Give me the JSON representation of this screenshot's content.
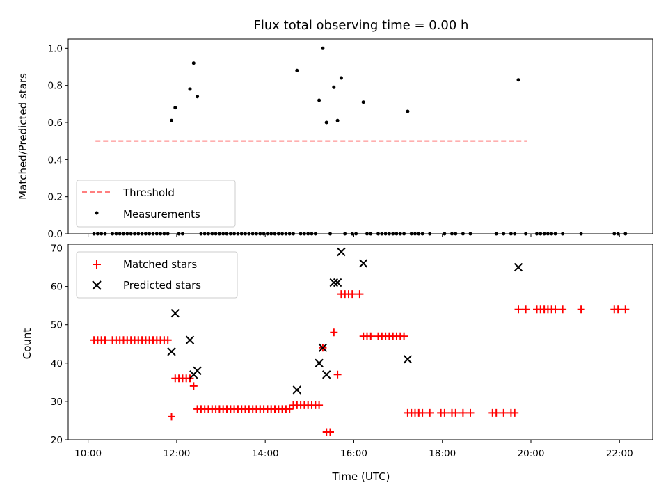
{
  "chart_data": [
    {
      "type": "scatter",
      "title": "Flux total observing time = 0.00 h",
      "xlabel": "",
      "ylabel": "Matched/Predicted stars",
      "xlim": [
        "09:33",
        "22:45"
      ],
      "ylim": [
        0,
        1.05
      ],
      "yticks": [
        "0.0",
        "0.2",
        "0.4",
        "0.6",
        "0.8",
        "1.0"
      ],
      "legend": {
        "position": "lower-left",
        "entries": [
          "Threshold",
          "Measurements"
        ]
      },
      "series": [
        {
          "name": "Threshold",
          "style": "dashed-line",
          "color": "#ff7f7f",
          "x": [
            "10:10",
            "19:55"
          ],
          "y": [
            0.5,
            0.5
          ]
        },
        {
          "name": "Measurements",
          "style": "dot",
          "color": "#000000",
          "points": [
            [
              "11:53",
              0.61
            ],
            [
              "11:58",
              0.68
            ],
            [
              "12:18",
              0.78
            ],
            [
              "12:23",
              0.92
            ],
            [
              "12:28",
              0.74
            ],
            [
              "14:43",
              0.88
            ],
            [
              "15:13",
              0.72
            ],
            [
              "15:18",
              1.0
            ],
            [
              "15:23",
              0.6
            ],
            [
              "15:33",
              0.79
            ],
            [
              "15:38",
              0.61
            ],
            [
              "15:43",
              0.84
            ],
            [
              "16:13",
              0.71
            ],
            [
              "17:13",
              0.66
            ],
            [
              "19:43",
              0.83
            ],
            [
              "10:08",
              0
            ],
            [
              "10:13",
              0
            ],
            [
              "10:18",
              0
            ],
            [
              "10:23",
              0
            ],
            [
              "10:33",
              0
            ],
            [
              "10:38",
              0
            ],
            [
              "10:43",
              0
            ],
            [
              "10:48",
              0
            ],
            [
              "10:53",
              0
            ],
            [
              "10:58",
              0
            ],
            [
              "11:03",
              0
            ],
            [
              "11:08",
              0
            ],
            [
              "11:13",
              0
            ],
            [
              "11:18",
              0
            ],
            [
              "11:23",
              0
            ],
            [
              "11:28",
              0
            ],
            [
              "11:33",
              0
            ],
            [
              "11:38",
              0
            ],
            [
              "11:43",
              0
            ],
            [
              "11:48",
              0
            ],
            [
              "12:03",
              0
            ],
            [
              "12:08",
              0
            ],
            [
              "12:33",
              0
            ],
            [
              "12:38",
              0
            ],
            [
              "12:43",
              0
            ],
            [
              "12:48",
              0
            ],
            [
              "12:53",
              0
            ],
            [
              "12:58",
              0
            ],
            [
              "13:03",
              0
            ],
            [
              "13:08",
              0
            ],
            [
              "13:13",
              0
            ],
            [
              "13:18",
              0
            ],
            [
              "13:23",
              0
            ],
            [
              "13:28",
              0
            ],
            [
              "13:33",
              0
            ],
            [
              "13:38",
              0
            ],
            [
              "13:43",
              0
            ],
            [
              "13:48",
              0
            ],
            [
              "13:53",
              0
            ],
            [
              "13:58",
              0
            ],
            [
              "14:03",
              0
            ],
            [
              "14:08",
              0
            ],
            [
              "14:13",
              0
            ],
            [
              "14:18",
              0
            ],
            [
              "14:23",
              0
            ],
            [
              "14:28",
              0
            ],
            [
              "14:33",
              0
            ],
            [
              "14:38",
              0
            ],
            [
              "14:48",
              0
            ],
            [
              "14:53",
              0
            ],
            [
              "14:58",
              0
            ],
            [
              "15:03",
              0
            ],
            [
              "15:08",
              0
            ],
            [
              "15:28",
              0
            ],
            [
              "15:48",
              0
            ],
            [
              "15:58",
              0
            ],
            [
              "16:03",
              0
            ],
            [
              "16:18",
              0
            ],
            [
              "16:23",
              0
            ],
            [
              "16:33",
              0
            ],
            [
              "16:38",
              0
            ],
            [
              "16:43",
              0
            ],
            [
              "16:48",
              0
            ],
            [
              "16:53",
              0
            ],
            [
              "16:58",
              0
            ],
            [
              "17:03",
              0
            ],
            [
              "17:08",
              0
            ],
            [
              "17:18",
              0
            ],
            [
              "17:23",
              0
            ],
            [
              "17:28",
              0
            ],
            [
              "17:33",
              0
            ],
            [
              "17:43",
              0
            ],
            [
              "18:03",
              0
            ],
            [
              "18:13",
              0
            ],
            [
              "18:18",
              0
            ],
            [
              "18:28",
              0
            ],
            [
              "18:38",
              0
            ],
            [
              "19:13",
              0
            ],
            [
              "19:23",
              0
            ],
            [
              "19:33",
              0
            ],
            [
              "19:38",
              0
            ],
            [
              "19:53",
              0
            ],
            [
              "20:08",
              0
            ],
            [
              "20:13",
              0
            ],
            [
              "20:18",
              0
            ],
            [
              "20:23",
              0
            ],
            [
              "20:28",
              0
            ],
            [
              "20:33",
              0
            ],
            [
              "20:43",
              0
            ],
            [
              "21:08",
              0
            ],
            [
              "21:53",
              0
            ],
            [
              "21:58",
              0
            ],
            [
              "22:08",
              0
            ]
          ]
        }
      ]
    },
    {
      "type": "scatter",
      "title": "",
      "xlabel": "Time (UTC)",
      "ylabel": "Count",
      "xlim": [
        "09:33",
        "22:45"
      ],
      "ylim": [
        20,
        71
      ],
      "xticks": [
        "10:00",
        "12:00",
        "14:00",
        "16:00",
        "18:00",
        "20:00",
        "22:00"
      ],
      "yticks": [
        "20",
        "30",
        "40",
        "50",
        "60",
        "70"
      ],
      "legend": {
        "position": "upper-left",
        "entries": [
          "Matched stars",
          "Predicted stars"
        ]
      },
      "series": [
        {
          "name": "Matched stars",
          "marker": "plus",
          "color": "#ff0000",
          "points": [
            [
              "10:08",
              46
            ],
            [
              "10:13",
              46
            ],
            [
              "10:18",
              46
            ],
            [
              "10:23",
              46
            ],
            [
              "10:33",
              46
            ],
            [
              "10:38",
              46
            ],
            [
              "10:43",
              46
            ],
            [
              "10:48",
              46
            ],
            [
              "10:53",
              46
            ],
            [
              "10:58",
              46
            ],
            [
              "11:03",
              46
            ],
            [
              "11:08",
              46
            ],
            [
              "11:13",
              46
            ],
            [
              "11:18",
              46
            ],
            [
              "11:23",
              46
            ],
            [
              "11:28",
              46
            ],
            [
              "11:33",
              46
            ],
            [
              "11:38",
              46
            ],
            [
              "11:43",
              46
            ],
            [
              "11:48",
              46
            ],
            [
              "11:53",
              26
            ],
            [
              "11:58",
              36
            ],
            [
              "12:03",
              36
            ],
            [
              "12:08",
              36
            ],
            [
              "12:13",
              36
            ],
            [
              "12:18",
              36
            ],
            [
              "12:23",
              34
            ],
            [
              "12:28",
              28
            ],
            [
              "12:33",
              28
            ],
            [
              "12:38",
              28
            ],
            [
              "12:43",
              28
            ],
            [
              "12:48",
              28
            ],
            [
              "12:53",
              28
            ],
            [
              "12:58",
              28
            ],
            [
              "13:03",
              28
            ],
            [
              "13:08",
              28
            ],
            [
              "13:13",
              28
            ],
            [
              "13:18",
              28
            ],
            [
              "13:23",
              28
            ],
            [
              "13:28",
              28
            ],
            [
              "13:33",
              28
            ],
            [
              "13:38",
              28
            ],
            [
              "13:43",
              28
            ],
            [
              "13:48",
              28
            ],
            [
              "13:53",
              28
            ],
            [
              "13:58",
              28
            ],
            [
              "14:03",
              28
            ],
            [
              "14:08",
              28
            ],
            [
              "14:13",
              28
            ],
            [
              "14:18",
              28
            ],
            [
              "14:23",
              28
            ],
            [
              "14:28",
              28
            ],
            [
              "14:33",
              28
            ],
            [
              "14:38",
              29
            ],
            [
              "14:43",
              29
            ],
            [
              "14:48",
              29
            ],
            [
              "14:53",
              29
            ],
            [
              "14:58",
              29
            ],
            [
              "15:03",
              29
            ],
            [
              "15:08",
              29
            ],
            [
              "15:13",
              29
            ],
            [
              "15:18",
              44
            ],
            [
              "15:23",
              22
            ],
            [
              "15:28",
              22
            ],
            [
              "15:33",
              48
            ],
            [
              "15:38",
              37
            ],
            [
              "15:43",
              58
            ],
            [
              "15:48",
              58
            ],
            [
              "15:53",
              58
            ],
            [
              "15:58",
              58
            ],
            [
              "16:08",
              58
            ],
            [
              "16:13",
              47
            ],
            [
              "16:18",
              47
            ],
            [
              "16:23",
              47
            ],
            [
              "16:33",
              47
            ],
            [
              "16:38",
              47
            ],
            [
              "16:43",
              47
            ],
            [
              "16:48",
              47
            ],
            [
              "16:53",
              47
            ],
            [
              "16:58",
              47
            ],
            [
              "17:03",
              47
            ],
            [
              "17:08",
              47
            ],
            [
              "17:13",
              27
            ],
            [
              "17:18",
              27
            ],
            [
              "17:23",
              27
            ],
            [
              "17:28",
              27
            ],
            [
              "17:33",
              27
            ],
            [
              "17:43",
              27
            ],
            [
              "17:58",
              27
            ],
            [
              "18:03",
              27
            ],
            [
              "18:13",
              27
            ],
            [
              "18:18",
              27
            ],
            [
              "18:28",
              27
            ],
            [
              "18:38",
              27
            ],
            [
              "19:08",
              27
            ],
            [
              "19:13",
              27
            ],
            [
              "19:23",
              27
            ],
            [
              "19:33",
              27
            ],
            [
              "19:38",
              27
            ],
            [
              "19:43",
              54
            ],
            [
              "19:53",
              54
            ],
            [
              "20:08",
              54
            ],
            [
              "20:13",
              54
            ],
            [
              "20:18",
              54
            ],
            [
              "20:23",
              54
            ],
            [
              "20:28",
              54
            ],
            [
              "20:33",
              54
            ],
            [
              "20:43",
              54
            ],
            [
              "21:08",
              54
            ],
            [
              "21:53",
              54
            ],
            [
              "21:58",
              54
            ],
            [
              "22:08",
              54
            ]
          ]
        },
        {
          "name": "Predicted stars",
          "marker": "x",
          "color": "#000000",
          "points": [
            [
              "11:53",
              43
            ],
            [
              "11:58",
              53
            ],
            [
              "12:18",
              46
            ],
            [
              "12:23",
              37
            ],
            [
              "12:28",
              38
            ],
            [
              "14:43",
              33
            ],
            [
              "15:13",
              40
            ],
            [
              "15:18",
              44
            ],
            [
              "15:23",
              37
            ],
            [
              "15:33",
              61
            ],
            [
              "15:38",
              61
            ],
            [
              "15:43",
              69
            ],
            [
              "16:13",
              66
            ],
            [
              "17:13",
              41
            ],
            [
              "19:43",
              65
            ]
          ]
        }
      ]
    }
  ]
}
